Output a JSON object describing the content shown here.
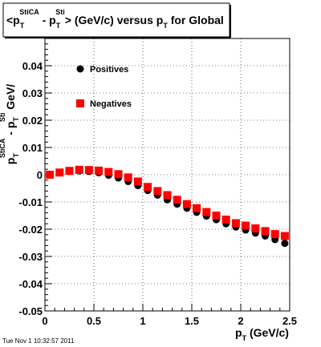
{
  "chart_data": {
    "type": "scatter",
    "title": {
      "pre": "<p",
      "sub1": "T",
      "sup1": "StiCA",
      "mid": " - p",
      "sub2": "T",
      "sup2": "Sti",
      "post1": "> (GeV/c) versus p",
      "sub3": "T",
      "post2": " for Global"
    },
    "xlabel": {
      "main": "p",
      "sub": "T",
      "rest": " (GeV/c)"
    },
    "ylabel": {
      "p1": "p",
      "sub1": "T",
      "sup1": "StiCA",
      "mid": " - p",
      "sub2": "T",
      "sup2": "Sti",
      "rest": " GeV/"
    },
    "xlim": [
      0,
      2.5
    ],
    "ylim": [
      -0.05,
      0.05
    ],
    "xticks": [
      "0",
      "0.5",
      "1",
      "1.5",
      "2",
      "2.5"
    ],
    "xtick_values": [
      0,
      0.5,
      1,
      1.5,
      2,
      2.5
    ],
    "yticks": [
      "-0.05",
      "-0.04",
      "-0.03",
      "-0.02",
      "-0.01",
      "0",
      "0.01",
      "0.02",
      "0.03",
      "0.04"
    ],
    "ytick_values": [
      -0.05,
      -0.04,
      -0.03,
      -0.02,
      -0.01,
      0,
      0.01,
      0.02,
      0.03,
      0.04
    ],
    "grid": true,
    "legend_position": "top-left",
    "series": [
      {
        "name": "Positives",
        "marker": "circle",
        "color": "#000000",
        "x": [
          0.05,
          0.15,
          0.25,
          0.35,
          0.45,
          0.55,
          0.65,
          0.75,
          0.85,
          0.95,
          1.05,
          1.15,
          1.25,
          1.35,
          1.45,
          1.55,
          1.65,
          1.75,
          1.85,
          1.95,
          2.05,
          2.15,
          2.25,
          2.35,
          2.45
        ],
        "y": [
          0.0,
          0.0008,
          0.0012,
          0.0014,
          0.0012,
          0.0007,
          -0.0002,
          -0.0012,
          -0.0025,
          -0.004,
          -0.0058,
          -0.0075,
          -0.0092,
          -0.0108,
          -0.0123,
          -0.0138,
          -0.0152,
          -0.0165,
          -0.018,
          -0.0192,
          -0.0203,
          -0.0214,
          -0.0225,
          -0.0238,
          -0.0252
        ]
      },
      {
        "name": "Negatives",
        "marker": "square",
        "color": "#ff0000",
        "x": [
          0.05,
          0.15,
          0.25,
          0.35,
          0.45,
          0.55,
          0.65,
          0.75,
          0.85,
          0.95,
          1.05,
          1.15,
          1.25,
          1.35,
          1.45,
          1.55,
          1.65,
          1.75,
          1.85,
          1.95,
          2.05,
          2.15,
          2.25,
          2.35,
          2.45
        ],
        "y": [
          0.0,
          0.0008,
          0.0014,
          0.0018,
          0.0017,
          0.0015,
          0.001,
          0.0002,
          -0.001,
          -0.0025,
          -0.0045,
          -0.006,
          -0.0075,
          -0.0092,
          -0.0108,
          -0.0123,
          -0.0137,
          -0.015,
          -0.0165,
          -0.0178,
          -0.0187,
          -0.0197,
          -0.0207,
          -0.0218,
          -0.0225
        ]
      }
    ]
  },
  "timestamp": "Tue Nov  1 10:32:57 2011"
}
